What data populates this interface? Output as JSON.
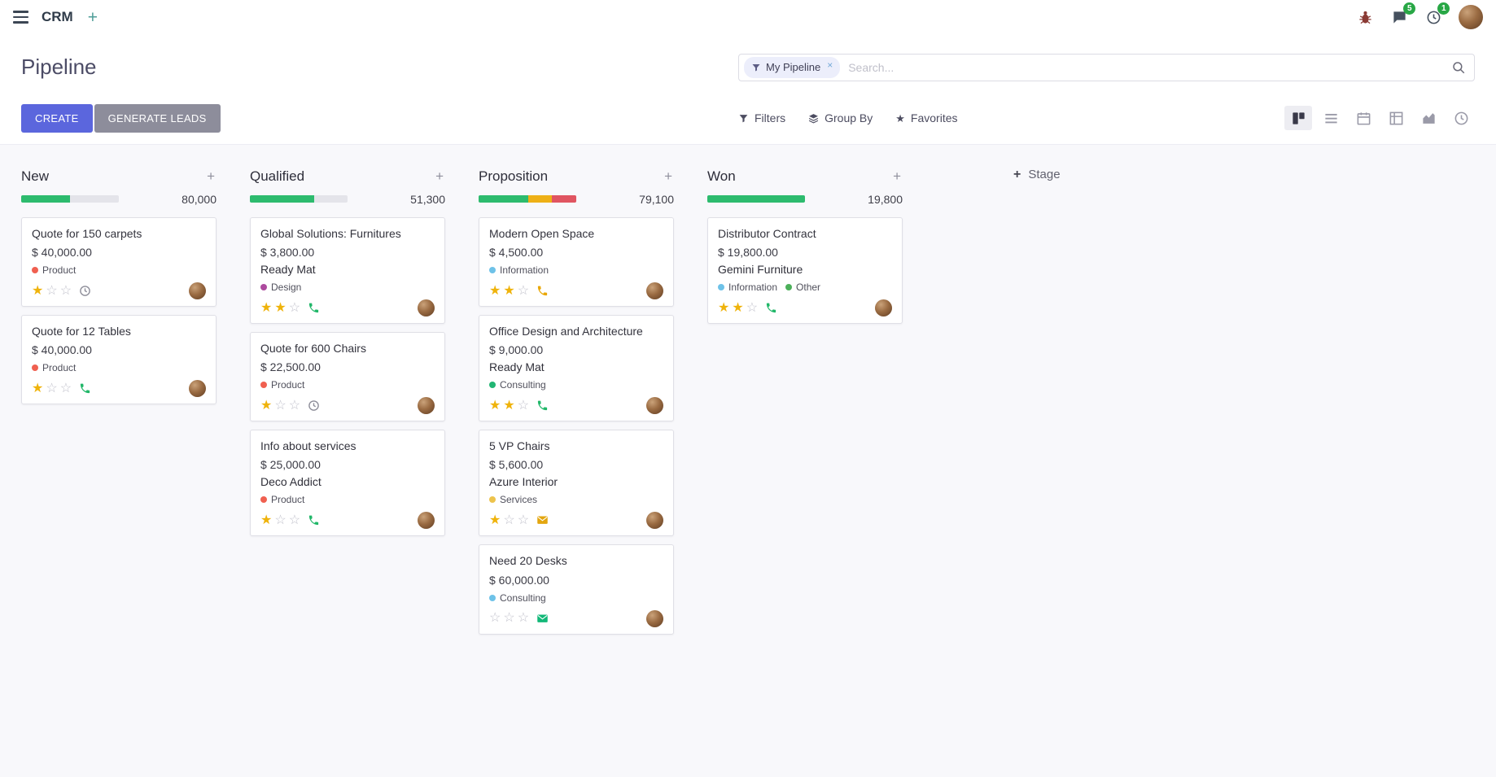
{
  "icons": {
    "plus": "+",
    "close": "×",
    "star_filled": "★",
    "star_empty": "☆"
  },
  "navbar": {
    "app_name": "CRM",
    "messages_badge": "5",
    "activities_badge": "1"
  },
  "control_panel": {
    "title": "Pipeline",
    "create_label": "CREATE",
    "generate_leads_label": "GENERATE LEADS",
    "filters_label": "Filters",
    "group_by_label": "Group By",
    "favorites_label": "Favorites",
    "search_facet": "My Pipeline",
    "search_placeholder": "Search..."
  },
  "kanban": {
    "add_stage_label": "Stage",
    "columns": [
      {
        "name": "New",
        "total": "80,000",
        "progress": [
          {
            "color": "#2dbb6e",
            "pct": 50
          }
        ],
        "cards": [
          {
            "title": "Quote for 150 carpets",
            "amount": "$ 40,000.00",
            "tags": [
              {
                "label": "Product",
                "color": "#f06050"
              }
            ],
            "stars_filled": 1,
            "activity": {
              "type": "clock",
              "color": "#8d8d99"
            }
          },
          {
            "title": "Quote for 12 Tables",
            "amount": "$ 40,000.00",
            "tags": [
              {
                "label": "Product",
                "color": "#f06050"
              }
            ],
            "stars_filled": 1,
            "activity": {
              "type": "phone",
              "color": "#21b769"
            }
          }
        ]
      },
      {
        "name": "Qualified",
        "total": "51,300",
        "progress": [
          {
            "color": "#2dbb6e",
            "pct": 66
          }
        ],
        "cards": [
          {
            "title": "Global Solutions: Furnitures",
            "amount": "$ 3,800.00",
            "partner": "Ready Mat",
            "tags": [
              {
                "label": "Design",
                "color": "#ad4a9e"
              }
            ],
            "stars_filled": 2,
            "activity": {
              "type": "phone",
              "color": "#21b769"
            }
          },
          {
            "title": "Quote for 600 Chairs",
            "amount": "$ 22,500.00",
            "tags": [
              {
                "label": "Product",
                "color": "#f06050"
              }
            ],
            "stars_filled": 1,
            "activity": {
              "type": "clock",
              "color": "#8d8d99"
            }
          },
          {
            "title": "Info about services",
            "amount": "$ 25,000.00",
            "partner": "Deco Addict",
            "tags": [
              {
                "label": "Product",
                "color": "#f06050"
              }
            ],
            "stars_filled": 1,
            "activity": {
              "type": "phone",
              "color": "#21b769"
            }
          }
        ]
      },
      {
        "name": "Proposition",
        "total": "79,100",
        "progress": [
          {
            "color": "#2dbb6e",
            "pct": 51
          },
          {
            "color": "#eeb016",
            "pct": 24
          },
          {
            "color": "#e05561",
            "pct": 25
          }
        ],
        "cards": [
          {
            "title": "Modern Open Space",
            "amount": "$ 4,500.00",
            "tags": [
              {
                "label": "Information",
                "color": "#6ec2e8"
              }
            ],
            "stars_filled": 2,
            "activity": {
              "type": "phone",
              "color": "#e9a600"
            }
          },
          {
            "title": "Office Design and Architecture",
            "amount": "$ 9,000.00",
            "partner": "Ready Mat",
            "tags": [
              {
                "label": "Consulting",
                "color": "#21b573"
              }
            ],
            "stars_filled": 2,
            "activity": {
              "type": "phone",
              "color": "#21b769"
            }
          },
          {
            "title": "5 VP Chairs",
            "amount": "$ 5,600.00",
            "partner": "Azure Interior",
            "tags": [
              {
                "label": "Services",
                "color": "#edc34c"
              }
            ],
            "stars_filled": 1,
            "activity": {
              "type": "mail",
              "color": "#e3a60f"
            }
          },
          {
            "title": "Need 20 Desks",
            "amount": "$ 60,000.00",
            "tags": [
              {
                "label": "Consulting",
                "color": "#6ec2e8"
              }
            ],
            "stars_filled": 0,
            "activity": {
              "type": "mail",
              "color": "#12b878"
            }
          }
        ]
      },
      {
        "name": "Won",
        "total": "19,800",
        "progress": [
          {
            "color": "#2dbb6e",
            "pct": 100
          }
        ],
        "cards": [
          {
            "title": "Distributor Contract",
            "amount": "$ 19,800.00",
            "partner": "Gemini Furniture",
            "tags": [
              {
                "label": "Information",
                "color": "#6ec2e8"
              },
              {
                "label": "Other",
                "color": "#4cb05a"
              }
            ],
            "stars_filled": 2,
            "activity": {
              "type": "phone",
              "color": "#21b769"
            }
          }
        ]
      }
    ]
  }
}
